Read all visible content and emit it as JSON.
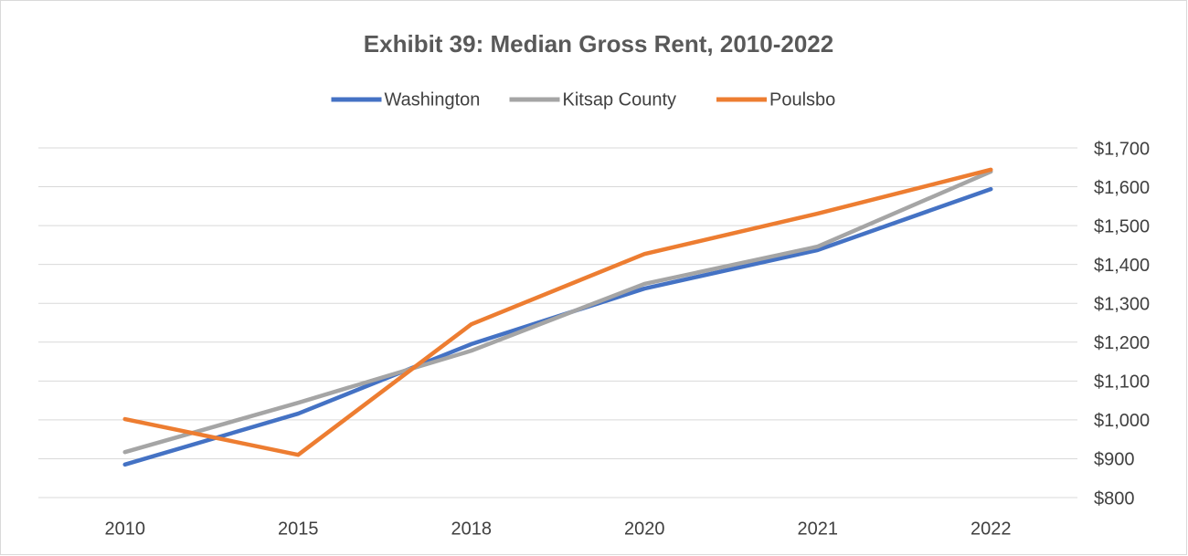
{
  "chart_data": {
    "type": "line",
    "title": "Exhibit 39: Median Gross Rent, 2010-2022",
    "categories": [
      "2010",
      "2015",
      "2018",
      "2020",
      "2021",
      "2022"
    ],
    "series": [
      {
        "name": "Washington",
        "color": "#4472c4",
        "values": [
          885,
          1016,
          1195,
          1338,
          1437,
          1594
        ]
      },
      {
        "name": "Kitsap County",
        "color": "#a5a5a5",
        "values": [
          917,
          1044,
          1178,
          1350,
          1446,
          1639
        ]
      },
      {
        "name": "Poulsbo",
        "color": "#ed7d31",
        "values": [
          1002,
          910,
          1246,
          1427,
          1531,
          1644
        ]
      }
    ],
    "ylim": [
      800,
      1700
    ],
    "yticks": [
      {
        "value": 800,
        "label": "$800"
      },
      {
        "value": 900,
        "label": "$900"
      },
      {
        "value": 1000,
        "label": "$1,000"
      },
      {
        "value": 1100,
        "label": "$1,100"
      },
      {
        "value": 1200,
        "label": "$1,200"
      },
      {
        "value": 1300,
        "label": "$1,300"
      },
      {
        "value": 1400,
        "label": "$1,400"
      },
      {
        "value": 1500,
        "label": "$1,500"
      },
      {
        "value": 1600,
        "label": "$1,600"
      },
      {
        "value": 1700,
        "label": "$1,700"
      }
    ],
    "grid": true,
    "legend": "top",
    "y_axis_side": "right"
  }
}
